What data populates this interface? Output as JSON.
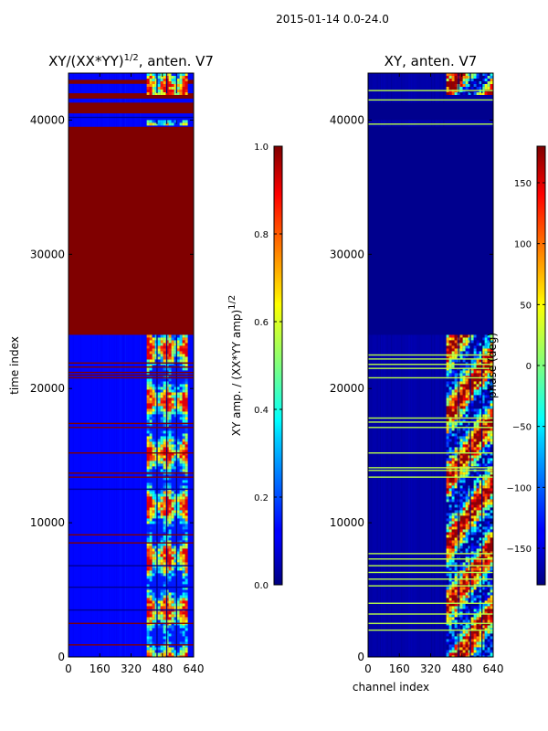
{
  "figure_title": "2015-01-14 0.0-24.0",
  "chart_data": [
    {
      "type": "heatmap",
      "title": "XY/(XX*YY)",
      "title_exponent": "1/2",
      "title_suffix": ", anten. V7",
      "xlabel": "",
      "ylabel": "time index",
      "xlim": [
        0,
        640
      ],
      "ylim": [
        0,
        43500
      ],
      "xticks": [
        0,
        160,
        320,
        480,
        640
      ],
      "yticks": [
        0,
        10000,
        20000,
        30000,
        40000
      ],
      "colorscale": "jet",
      "colorbar": {
        "label": "XY amp. / (XX*YY amp)",
        "label_exponent": "1/2",
        "range": [
          0.0,
          1.0
        ],
        "ticks": [
          "0.0",
          "0.2",
          "0.4",
          "0.6",
          "0.8",
          "1.0"
        ]
      },
      "background_value": 0.13,
      "regions": [
        {
          "y0": 24000,
          "y1": 39500,
          "x0": 0,
          "x1": 640,
          "value": 1.0
        },
        {
          "y0": 40500,
          "y1": 41300,
          "x0": 0,
          "x1": 640,
          "value": 1.0
        },
        {
          "y0": 41600,
          "y1": 42000,
          "x0": 0,
          "x1": 640,
          "value": 1.0
        },
        {
          "y0": 42700,
          "y1": 43000,
          "x0": 0,
          "x1": 640,
          "value": 1.0
        }
      ],
      "bands": [
        {
          "x0": 400,
          "x1": 600,
          "y0": 0,
          "y1": 24000,
          "pattern": "mixed"
        },
        {
          "x0": 400,
          "x1": 600,
          "y0": 42000,
          "y1": 43500,
          "pattern": "mixed"
        },
        {
          "x0": 400,
          "x1": 600,
          "y0": 39700,
          "y1": 40000,
          "pattern": "mixed"
        }
      ],
      "flag_lines": [
        {
          "y": 900,
          "value": 1.0
        },
        {
          "y": 2500,
          "value": 1.0
        },
        {
          "y": 8500,
          "value": 1.0
        },
        {
          "y": 9100,
          "value": 1.0
        },
        {
          "y": 13400,
          "value": 1.0
        },
        {
          "y": 13700,
          "value": 1.0
        },
        {
          "y": 15200,
          "value": 1.0
        },
        {
          "y": 17100,
          "value": 1.0
        },
        {
          "y": 17400,
          "value": 1.0
        },
        {
          "y": 20800,
          "value": 1.0
        },
        {
          "y": 21000,
          "value": 1.0
        },
        {
          "y": 21200,
          "value": 1.0
        },
        {
          "y": 21600,
          "value": 1.0
        },
        {
          "y": 21900,
          "value": 1.0
        },
        {
          "y": 3500,
          "value": 0.02
        },
        {
          "y": 5200,
          "value": 0.02
        },
        {
          "y": 6800,
          "value": 0.02
        },
        {
          "y": 12500,
          "value": 0.02
        },
        {
          "y": 40200,
          "value": 0.02
        }
      ]
    },
    {
      "type": "heatmap",
      "title": "XY, anten. V7",
      "xlabel": "channel index",
      "ylabel": "",
      "xlim": [
        0,
        640
      ],
      "ylim": [
        0,
        43500
      ],
      "xticks": [
        0,
        160,
        320,
        480,
        640
      ],
      "yticks": [
        0,
        10000,
        20000,
        30000,
        40000
      ],
      "colorscale": "jet",
      "colorbar": {
        "label": "phase (deg)",
        "range": [
          -180,
          180
        ],
        "ticks": [
          "−150",
          "−100",
          "−50",
          "0",
          "50",
          "100",
          "150"
        ],
        "tick_values": [
          -150,
          -100,
          -50,
          0,
          50,
          100,
          150
        ]
      },
      "background_value": -165,
      "regions": [
        {
          "y0": 24000,
          "y1": 39500,
          "x0": 0,
          "x1": 640,
          "value": -175
        },
        {
          "y0": 40000,
          "y1": 41300,
          "x0": 0,
          "x1": 640,
          "value": -175
        }
      ],
      "bands": [
        {
          "x0": 400,
          "x1": 640,
          "y0": 0,
          "y1": 24000,
          "pattern": "phase"
        },
        {
          "x0": 400,
          "x1": 640,
          "y0": 42000,
          "y1": 43500,
          "pattern": "phase"
        }
      ],
      "flag_lines": [
        {
          "y": 2000,
          "value": 20
        },
        {
          "y": 2500,
          "value": 20
        },
        {
          "y": 3200,
          "value": 20
        },
        {
          "y": 4000,
          "value": 20
        },
        {
          "y": 5300,
          "value": 20
        },
        {
          "y": 5800,
          "value": 20
        },
        {
          "y": 6300,
          "value": 20
        },
        {
          "y": 6800,
          "value": 20
        },
        {
          "y": 7300,
          "value": 20
        },
        {
          "y": 7700,
          "value": 20
        },
        {
          "y": 13400,
          "value": 20
        },
        {
          "y": 13900,
          "value": 20
        },
        {
          "y": 14100,
          "value": 20
        },
        {
          "y": 15200,
          "value": 20
        },
        {
          "y": 17100,
          "value": 20
        },
        {
          "y": 17500,
          "value": 20
        },
        {
          "y": 17800,
          "value": 20
        },
        {
          "y": 20800,
          "value": 20
        },
        {
          "y": 21500,
          "value": 20
        },
        {
          "y": 21800,
          "value": 20
        },
        {
          "y": 22200,
          "value": 20
        },
        {
          "y": 22500,
          "value": 20
        },
        {
          "y": 39700,
          "value": 20
        },
        {
          "y": 41500,
          "value": 20
        },
        {
          "y": 42200,
          "value": 20
        }
      ]
    }
  ]
}
